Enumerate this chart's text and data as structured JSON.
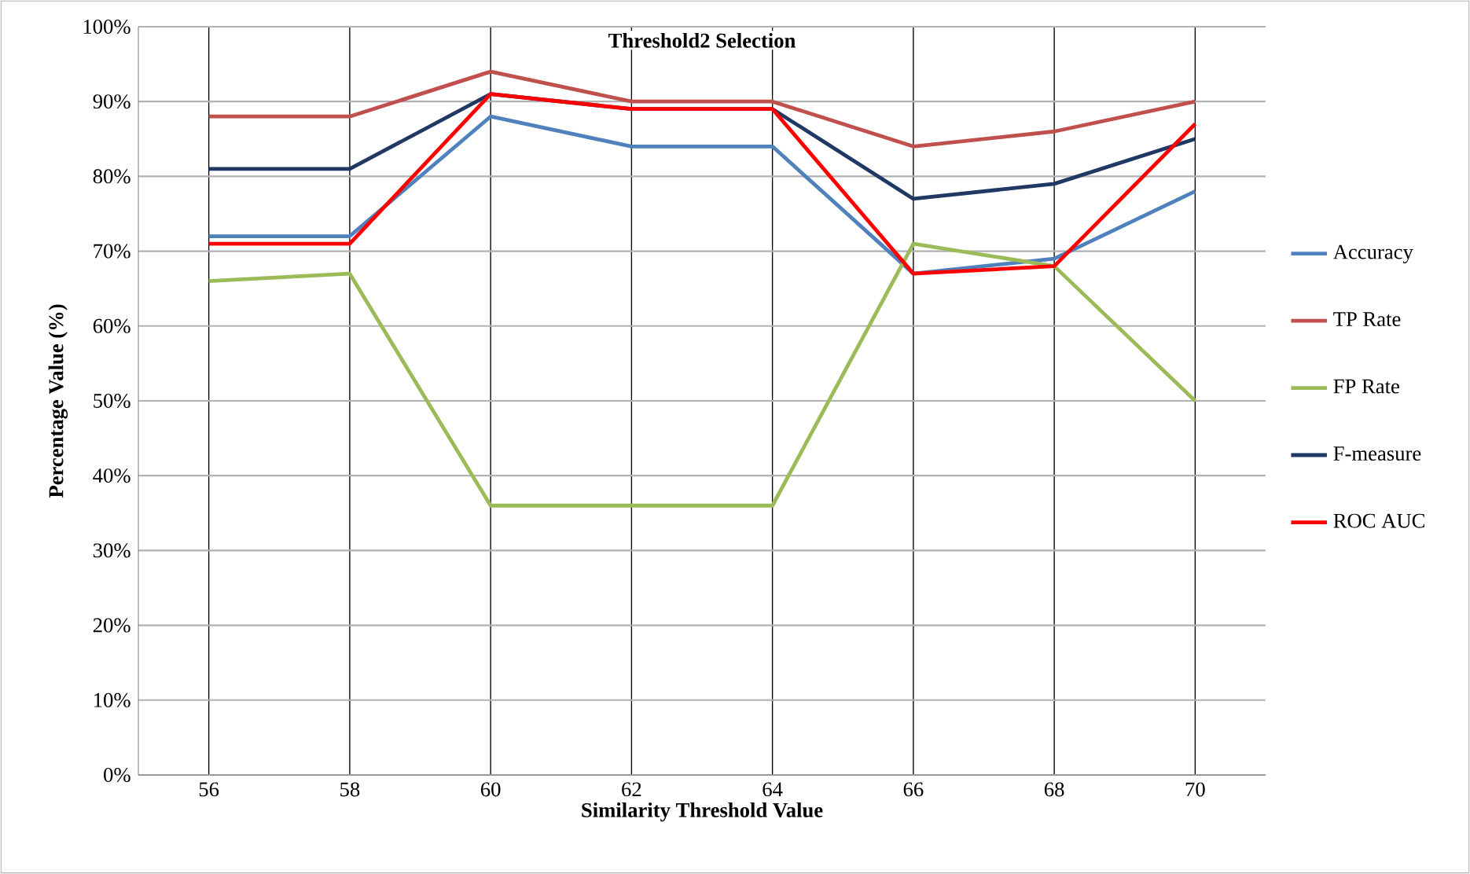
{
  "chart_data": {
    "type": "line",
    "title": "Threshold2 Selection",
    "xlabel": "Similarity Threshold Value",
    "ylabel": "Percentage Value (%)",
    "categories": [
      "56",
      "58",
      "60",
      "62",
      "64",
      "66",
      "68",
      "70"
    ],
    "series": [
      {
        "name": "Accuracy",
        "color": "#4f81bd",
        "values": [
          72,
          72,
          88,
          84,
          84,
          67,
          69,
          78
        ]
      },
      {
        "name": "TP Rate",
        "color": "#c0504d",
        "values": [
          88,
          88,
          94,
          90,
          90,
          84,
          86,
          90
        ]
      },
      {
        "name": "FP Rate",
        "color": "#9bbb59",
        "values": [
          66,
          67,
          36,
          36,
          36,
          71,
          68,
          50
        ]
      },
      {
        "name": "F-measure",
        "color": "#1f3864",
        "values": [
          81,
          81,
          91,
          89,
          89,
          77,
          79,
          85
        ]
      },
      {
        "name": "ROC AUC",
        "color": "#ff0000",
        "values": [
          71,
          71,
          91,
          89,
          89,
          67,
          68,
          87
        ]
      }
    ],
    "ylim": [
      0,
      100
    ],
    "yticks": [
      {
        "value": 0,
        "label": "0%"
      },
      {
        "value": 10,
        "label": "10%"
      },
      {
        "value": 20,
        "label": "20%"
      },
      {
        "value": 30,
        "label": "30%"
      },
      {
        "value": 40,
        "label": "40%"
      },
      {
        "value": 50,
        "label": "50%"
      },
      {
        "value": 60,
        "label": "60%"
      },
      {
        "value": 70,
        "label": "70%"
      },
      {
        "value": 80,
        "label": "80%"
      },
      {
        "value": 90,
        "label": "90%"
      },
      {
        "value": 100,
        "label": "100%"
      }
    ],
    "grid": true,
    "legend": "right",
    "marker": "none",
    "line_style": "solid"
  }
}
